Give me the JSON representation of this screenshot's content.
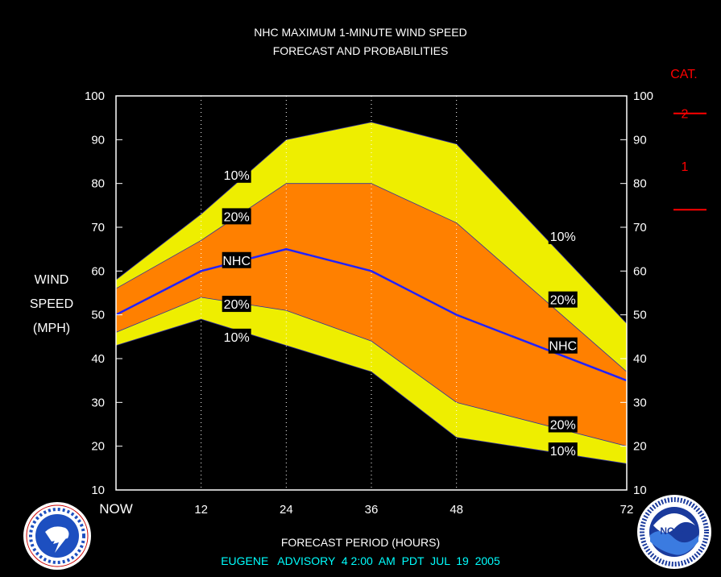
{
  "header": {
    "title_line1": "NHC MAXIMUM 1-MINUTE WIND SPEED",
    "title_line2": "FORECAST AND PROBABILITIES"
  },
  "ylabel_lines": [
    "WIND",
    "SPEED",
    "(MPH)"
  ],
  "xlabel": "FORECAST PERIOD (HOURS)",
  "advisory": "EUGENE   ADVISORY  4 2:00  AM  PDT  JUL  19  2005",
  "category": {
    "title": "CAT.",
    "labels": [
      {
        "text": "2",
        "mph": 96
      },
      {
        "text": "1",
        "mph": 84
      }
    ],
    "thresholds_mph": [
      74,
      96
    ]
  },
  "colors": {
    "outer_band": "#eeee00",
    "inner_band": "#ff8000",
    "nhc_line": "#2222ff",
    "category": "#ff0000",
    "advisory_text": "#00ffff"
  },
  "logos": {
    "left": {
      "name": "NATIONAL WEATHER SERVICE"
    },
    "right": {
      "name": "NOAA"
    }
  },
  "chart_data": {
    "type": "area",
    "x": [
      0,
      12,
      24,
      36,
      48,
      72
    ],
    "x_tick_labels": [
      "NOW",
      "12",
      "24",
      "36",
      "48",
      "72"
    ],
    "xlim": [
      0,
      72
    ],
    "ylim": [
      10,
      100
    ],
    "y_ticks": [
      10,
      20,
      30,
      40,
      50,
      60,
      70,
      80,
      90,
      100
    ],
    "grid": "vertical dotted at forecast hours",
    "series": [
      {
        "name": "10%",
        "values": [
          58,
          73,
          90,
          94,
          89,
          48
        ]
      },
      {
        "name": "20%",
        "values": [
          56,
          67,
          80,
          80,
          71,
          37
        ]
      },
      {
        "name": "NHC",
        "values": [
          50,
          60,
          65,
          60,
          50,
          35
        ]
      },
      {
        "name": "20%",
        "values": [
          46,
          54,
          51,
          44,
          30,
          20
        ]
      },
      {
        "name": "10%",
        "values": [
          43,
          49,
          43,
          37,
          22,
          16
        ]
      }
    ],
    "labels": [
      {
        "text": "10%",
        "x": 17,
        "y": 82
      },
      {
        "text": "20%",
        "x": 17,
        "y": 72.5
      },
      {
        "text": "NHC",
        "x": 17,
        "y": 62.5
      },
      {
        "text": "20%",
        "x": 17,
        "y": 52.5
      },
      {
        "text": "10%",
        "x": 17,
        "y": 45
      },
      {
        "text": "10%",
        "x": 63,
        "y": 68
      },
      {
        "text": "20%",
        "x": 63,
        "y": 53.5
      },
      {
        "text": "NHC",
        "x": 63,
        "y": 43
      },
      {
        "text": "20%",
        "x": 63,
        "y": 25
      },
      {
        "text": "10%",
        "x": 63,
        "y": 19
      }
    ]
  }
}
